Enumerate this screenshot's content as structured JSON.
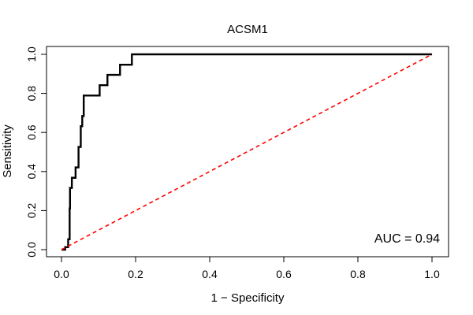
{
  "chart_data": {
    "type": "line",
    "title": "ACSM1",
    "xlabel": "1 − Specificity",
    "ylabel": "Sensitivity",
    "xlim": [
      0,
      1
    ],
    "ylim": [
      0,
      1
    ],
    "x_ticks": [
      "0.0",
      "0.2",
      "0.4",
      "0.6",
      "0.8",
      "1.0"
    ],
    "y_ticks": [
      "0.0",
      "0.2",
      "0.4",
      "0.6",
      "0.8",
      "1.0"
    ],
    "grid": false,
    "legend": "none",
    "annotation": "AUC = 0.94",
    "series": [
      {
        "style": "solid",
        "color": "#000000",
        "points": [
          [
            0.0,
            0.0
          ],
          [
            0.01,
            0.0
          ],
          [
            0.01,
            0.013
          ],
          [
            0.018,
            0.013
          ],
          [
            0.018,
            0.053
          ],
          [
            0.022,
            0.053
          ],
          [
            0.022,
            0.211
          ],
          [
            0.023,
            0.211
          ],
          [
            0.023,
            0.316
          ],
          [
            0.028,
            0.316
          ],
          [
            0.028,
            0.368
          ],
          [
            0.038,
            0.368
          ],
          [
            0.038,
            0.421
          ],
          [
            0.046,
            0.421
          ],
          [
            0.046,
            0.526
          ],
          [
            0.052,
            0.526
          ],
          [
            0.052,
            0.632
          ],
          [
            0.056,
            0.632
          ],
          [
            0.056,
            0.684
          ],
          [
            0.06,
            0.684
          ],
          [
            0.06,
            0.789
          ],
          [
            0.103,
            0.789
          ],
          [
            0.103,
            0.842
          ],
          [
            0.124,
            0.842
          ],
          [
            0.124,
            0.895
          ],
          [
            0.158,
            0.895
          ],
          [
            0.158,
            0.947
          ],
          [
            0.19,
            0.947
          ],
          [
            0.19,
            1.0
          ],
          [
            1.0,
            1.0
          ]
        ]
      },
      {
        "style": "dashed",
        "color": "#ff0000",
        "points": [
          [
            0.0,
            0.0
          ],
          [
            1.0,
            1.0
          ]
        ]
      }
    ]
  }
}
